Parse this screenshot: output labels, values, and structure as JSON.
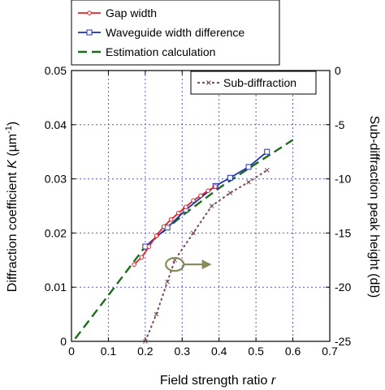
{
  "chart_data": {
    "type": "line",
    "xlabel": "Field strength ratio r",
    "xlabel_main": "Field strength ratio ",
    "xlabel_var": "r",
    "ylabel_left": "Diffraction coefficient K (µm-1)",
    "ylabel_left_main": "Diffraction coefficient ",
    "ylabel_left_var": "K",
    "ylabel_left_unit": " (µm",
    "ylabel_left_exp": "-1",
    "ylabel_left_close": ")",
    "ylabel_right": "Sub-diffraction peak height (dB)",
    "xlim": [
      0,
      0.7
    ],
    "ylim_left": [
      0,
      0.05
    ],
    "ylim_right": [
      -25,
      0
    ],
    "x_ticks": [
      "0",
      "0.1",
      "0.2",
      "0.3",
      "0.4",
      "0.5",
      "0.6",
      "0.7"
    ],
    "y_left_ticks": [
      "0",
      "0.01",
      "0.02",
      "0.03",
      "0.04",
      "0.05"
    ],
    "y_right_ticks": [
      "-25",
      "-20",
      "-15",
      "-10",
      "-5",
      "0"
    ],
    "grid": true,
    "series": [
      {
        "name": "Gap width",
        "axis": "left",
        "color": "#e8202a",
        "marker": "circle",
        "dash": "solid",
        "x": [
          0.17,
          0.19,
          0.21,
          0.23,
          0.25,
          0.27,
          0.29,
          0.31,
          0.33,
          0.35,
          0.37,
          0.39
        ],
        "y": [
          0.0142,
          0.0155,
          0.0175,
          0.0195,
          0.0212,
          0.0225,
          0.0237,
          0.0248,
          0.026,
          0.0269,
          0.0278,
          0.0286
        ]
      },
      {
        "name": "Waveguide width difference",
        "axis": "left",
        "color": "#1f2fb0",
        "marker": "square",
        "dash": "solid",
        "x": [
          0.2,
          0.26,
          0.31,
          0.39,
          0.43,
          0.48,
          0.53
        ],
        "y": [
          0.0175,
          0.021,
          0.0243,
          0.0287,
          0.0302,
          0.0322,
          0.035
        ]
      },
      {
        "name": "Estimation calculation",
        "axis": "left",
        "color": "#1a6e1a",
        "marker": "none",
        "dash": "long-dash",
        "x": [
          0.01,
          0.1,
          0.2,
          0.3,
          0.4,
          0.5,
          0.6
        ],
        "y": [
          0.0005,
          0.0085,
          0.0175,
          0.0232,
          0.0283,
          0.0328,
          0.0372
        ]
      },
      {
        "name": "Sub-diffraction",
        "axis": "right",
        "color": "#7a4a55",
        "marker": "x",
        "dash": "dotted",
        "x": [
          0.2,
          0.23,
          0.26,
          0.28,
          0.33,
          0.38,
          0.43,
          0.48,
          0.53
        ],
        "y": [
          -25,
          -22.5,
          -19.5,
          -17.5,
          -15,
          -12.5,
          -11.3,
          -10.3,
          -9.2
        ]
      }
    ],
    "legend_top": [
      "Gap width",
      "Waveguide width difference",
      "Estimation calculation"
    ],
    "legend_right": [
      "Sub-diffraction"
    ],
    "annotation": {
      "type": "ellipse-with-arrow",
      "color": "#8a8b5a",
      "at": [
        0.28,
        0.0142
      ],
      "arrow_to": [
        0.38,
        0.0142
      ],
      "meaning": "refers to right axis"
    }
  }
}
